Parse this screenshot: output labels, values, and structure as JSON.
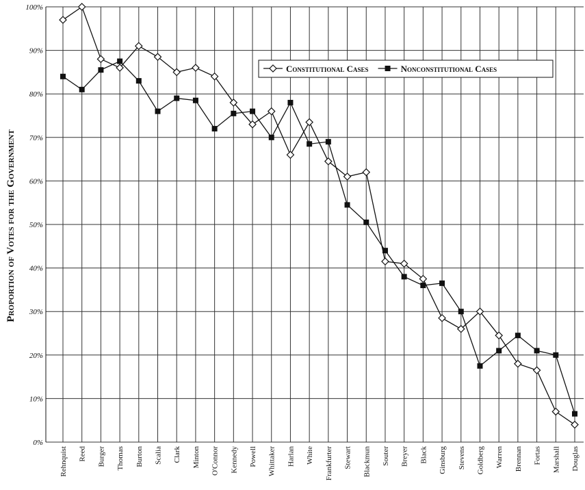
{
  "chart_data": {
    "type": "line",
    "y_label": "Proportion of Votes for the Government",
    "categories": [
      "Rehnquist",
      "Reed",
      "Burger",
      "Thomas",
      "Burton",
      "Scalia",
      "Clark",
      "Minton",
      "O'Connor",
      "Kennedy",
      "Powell",
      "Whittaker",
      "Harlan",
      "White",
      "Frankfurter",
      "Stewart",
      "Blackmun",
      "Souter",
      "Breyer",
      "Black",
      "Ginsburg",
      "Stevens",
      "Goldberg",
      "Warren",
      "Brennan",
      "Fortas",
      "Marshall",
      "Douglas"
    ],
    "series": [
      {
        "name": "Constitutional Cases",
        "color": "#111111",
        "marker": "diamond",
        "values": [
          97,
          100,
          88,
          86,
          91,
          88.5,
          85,
          86,
          84,
          78,
          73,
          76,
          66,
          73.5,
          64.5,
          61,
          62,
          41.5,
          41,
          37.5,
          28.5,
          26,
          30,
          24.5,
          18,
          16.5,
          7,
          4
        ]
      },
      {
        "name": "Nonconstitutional Cases",
        "color": "#111111",
        "marker": "square",
        "values": [
          84,
          81,
          85.5,
          87.5,
          83,
          76,
          79,
          78.5,
          72,
          75.5,
          76,
          70,
          78,
          68.5,
          69,
          54.5,
          50.5,
          44,
          38,
          36,
          36.5,
          30,
          17.5,
          21,
          24.5,
          21,
          20,
          6.5
        ]
      }
    ],
    "ylim": [
      0,
      100
    ],
    "yticks": [
      {
        "value": 0,
        "label": "0%"
      },
      {
        "value": 10,
        "label": "10%"
      },
      {
        "value": 20,
        "label": "20%"
      },
      {
        "value": 30,
        "label": "30%"
      },
      {
        "value": 40,
        "label": "40%"
      },
      {
        "value": 50,
        "label": "50%"
      },
      {
        "value": 60,
        "label": "60%"
      },
      {
        "value": 70,
        "label": "70%"
      },
      {
        "value": 80,
        "label": "80%"
      },
      {
        "value": 90,
        "label": "90%"
      },
      {
        "value": 100,
        "label": "100%"
      }
    ],
    "grid": true
  }
}
